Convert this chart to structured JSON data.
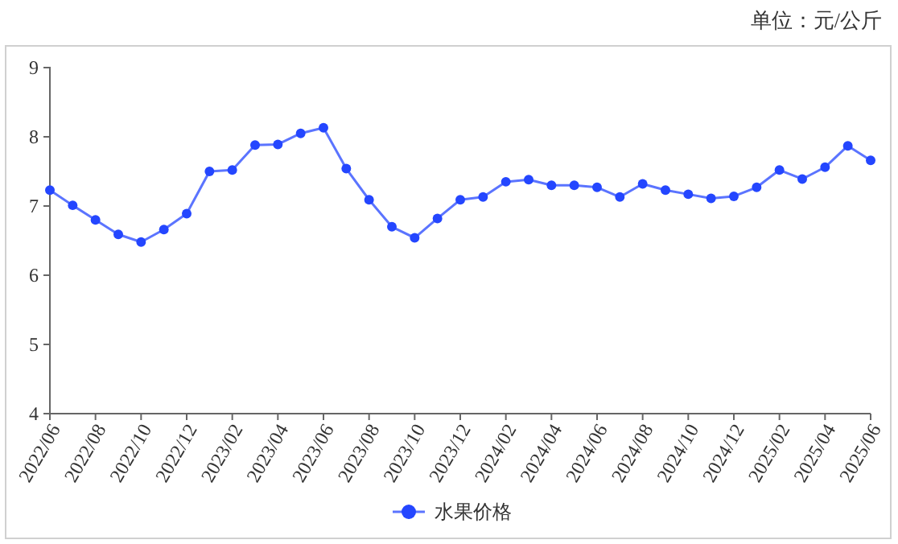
{
  "chart_data": {
    "type": "line",
    "annotations": [
      "单位：元/公斤"
    ],
    "categories": [
      "2022/06",
      null,
      "2022/08",
      null,
      "2022/10",
      null,
      "2022/12",
      null,
      "2023/02",
      null,
      "2023/04",
      null,
      "2023/06",
      null,
      "2023/08",
      null,
      "2023/10",
      null,
      "2023/12",
      null,
      "2024/02",
      null,
      "2024/04",
      null,
      "2024/06",
      null,
      "2024/08",
      null,
      "2024/10",
      null,
      "2024/12",
      null,
      "2025/02",
      null,
      "2025/04",
      null,
      "2025/06"
    ],
    "series": [
      {
        "name": "水果价格",
        "color": "#2446ff",
        "values": [
          7.23,
          7.01,
          6.8,
          6.59,
          6.48,
          6.66,
          6.89,
          7.5,
          7.52,
          7.88,
          7.89,
          8.05,
          8.13,
          7.54,
          7.09,
          6.7,
          6.54,
          6.82,
          7.09,
          7.13,
          7.35,
          7.38,
          7.3,
          7.3,
          7.27,
          7.13,
          7.32,
          7.23,
          7.17,
          7.11,
          7.14,
          7.27,
          7.52,
          7.39,
          7.56,
          7.87,
          7.66
        ]
      }
    ],
    "ylim": [
      4,
      9
    ],
    "yticks": [
      4,
      5,
      6,
      7,
      8,
      9
    ],
    "grid": false,
    "legend": "bottom",
    "marker": "circle",
    "line_style": "solid"
  }
}
